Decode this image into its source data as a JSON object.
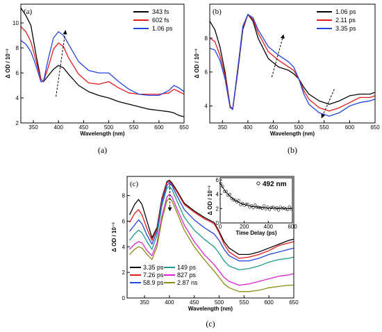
{
  "chart_data": [
    {
      "id": "a",
      "type": "line",
      "panel_label": "(a)",
      "caption": "(a)",
      "xlabel": "Wavelength (nm)",
      "ylabel": "Δ OD / 10⁻³",
      "xlim": [
        325,
        650
      ],
      "ylim": [
        2,
        11.5
      ],
      "xticks": [
        350,
        400,
        450,
        500,
        550,
        600,
        650
      ],
      "yticks": [
        2,
        4,
        6,
        8,
        10
      ],
      "legend_position": "top-right",
      "series": [
        {
          "name": "343 fs",
          "color": "#000000",
          "x": [
            325,
            335,
            345,
            355,
            365,
            370,
            380,
            390,
            400,
            410,
            420,
            440,
            460,
            480,
            500,
            520,
            540,
            560,
            580,
            600,
            620,
            630,
            640,
            650
          ],
          "y": [
            11.2,
            10.6,
            9.8,
            7.5,
            5.5,
            5.3,
            5.8,
            6.3,
            6.6,
            6.4,
            5.9,
            5.0,
            4.5,
            4.2,
            4.0,
            3.7,
            3.5,
            3.3,
            3.1,
            3.0,
            2.9,
            2.8,
            2.6,
            2.5
          ]
        },
        {
          "name": "602 fs",
          "color": "#e41a1c",
          "x": [
            325,
            335,
            345,
            355,
            365,
            370,
            380,
            390,
            400,
            410,
            420,
            440,
            460,
            480,
            500,
            520,
            540,
            560,
            580,
            600,
            620,
            630,
            640,
            650
          ],
          "y": [
            9.7,
            9.3,
            8.5,
            7.0,
            5.5,
            5.3,
            6.5,
            7.9,
            8.4,
            8.1,
            7.2,
            5.9,
            5.2,
            5.1,
            5.3,
            4.8,
            4.4,
            4.3,
            4.3,
            4.3,
            4.4,
            4.7,
            4.5,
            4.3
          ]
        },
        {
          "name": "1.06 ps",
          "color": "#2244dd",
          "x": [
            325,
            335,
            345,
            355,
            365,
            370,
            380,
            390,
            400,
            410,
            420,
            440,
            460,
            480,
            500,
            520,
            540,
            560,
            580,
            600,
            620,
            630,
            640,
            650
          ],
          "y": [
            8.6,
            8.3,
            7.7,
            6.6,
            5.3,
            5.3,
            7.2,
            8.8,
            9.3,
            9.0,
            8.3,
            6.9,
            6.2,
            6.0,
            6.0,
            5.3,
            4.7,
            4.3,
            4.2,
            4.2,
            4.6,
            5.0,
            4.8,
            4.5
          ]
        }
      ]
    },
    {
      "id": "b",
      "type": "line",
      "panel_label": "(b)",
      "caption": "(b)",
      "xlabel": "Wavelength (nm)",
      "ylabel": "Δ OD / 10⁻³",
      "xlim": [
        325,
        650
      ],
      "ylim": [
        3,
        10
      ],
      "xticks": [
        350,
        400,
        450,
        500,
        550,
        600,
        650
      ],
      "yticks": [
        4,
        6,
        8
      ],
      "legend_position": "top-right",
      "series": [
        {
          "name": "1.06 ps",
          "color": "#000000",
          "x": [
            325,
            335,
            345,
            355,
            365,
            370,
            380,
            390,
            400,
            410,
            420,
            440,
            460,
            480,
            490,
            500,
            510,
            520,
            540,
            560,
            580,
            600,
            620,
            640,
            650
          ],
          "y": [
            9.0,
            8.5,
            7.5,
            6.0,
            4.0,
            3.8,
            6.0,
            8.5,
            9.4,
            9.0,
            8.0,
            6.8,
            6.3,
            6.1,
            5.9,
            5.6,
            5.1,
            4.7,
            4.3,
            4.1,
            4.3,
            4.6,
            4.7,
            4.7,
            4.8
          ]
        },
        {
          "name": "2.11 ps",
          "color": "#e41a1c",
          "x": [
            325,
            335,
            345,
            355,
            365,
            370,
            380,
            390,
            400,
            410,
            420,
            440,
            460,
            480,
            490,
            500,
            510,
            520,
            540,
            560,
            580,
            600,
            620,
            640,
            650
          ],
          "y": [
            8.0,
            7.8,
            7.0,
            5.8,
            4.0,
            3.8,
            6.1,
            8.6,
            9.4,
            9.1,
            8.3,
            7.2,
            6.7,
            6.3,
            6.1,
            5.6,
            4.9,
            4.4,
            3.9,
            3.7,
            3.9,
            4.2,
            4.5,
            4.5,
            4.6
          ]
        },
        {
          "name": "3.35 ps",
          "color": "#2244dd",
          "x": [
            325,
            335,
            345,
            355,
            365,
            370,
            380,
            390,
            400,
            410,
            420,
            440,
            460,
            480,
            490,
            500,
            510,
            520,
            540,
            560,
            580,
            600,
            620,
            640,
            650
          ],
          "y": [
            7.4,
            7.3,
            6.7,
            5.6,
            3.9,
            3.8,
            6.2,
            8.7,
            9.4,
            9.2,
            8.5,
            7.5,
            7.0,
            6.6,
            6.3,
            5.6,
            4.7,
            4.1,
            3.6,
            3.4,
            3.6,
            4.0,
            4.2,
            4.3,
            4.4
          ]
        }
      ]
    },
    {
      "id": "c",
      "type": "line",
      "panel_label": "(c)",
      "caption": "(c)",
      "xlabel": "Wavelength (nm)",
      "ylabel": "Δ OD / 10⁻³",
      "xlim": [
        315,
        650
      ],
      "ylim": [
        0,
        9.5
      ],
      "xticks": [
        350,
        400,
        450,
        500,
        550,
        600,
        650
      ],
      "yticks": [
        0,
        2,
        4,
        6,
        8
      ],
      "legend_position": "bottom-left",
      "series": [
        {
          "name": "3.35 ps",
          "color": "#000000",
          "x": [
            320,
            330,
            338,
            345,
            355,
            365,
            375,
            385,
            395,
            400,
            405,
            415,
            430,
            450,
            470,
            490,
            500,
            510,
            520,
            540,
            560,
            580,
            600,
            620,
            640,
            650
          ],
          "y": [
            6.5,
            7.3,
            7.7,
            7.3,
            6.0,
            4.7,
            5.5,
            7.8,
            9.1,
            9.2,
            9.0,
            8.4,
            7.4,
            6.8,
            6.3,
            5.9,
            5.2,
            4.4,
            3.9,
            3.4,
            3.4,
            3.6,
            3.9,
            4.2,
            4.5,
            4.6
          ]
        },
        {
          "name": "7.26 ps",
          "color": "#e41a1c",
          "x": [
            320,
            330,
            338,
            345,
            355,
            365,
            375,
            385,
            395,
            400,
            405,
            415,
            430,
            450,
            470,
            490,
            500,
            510,
            520,
            540,
            560,
            580,
            600,
            620,
            640,
            650
          ],
          "y": [
            5.9,
            6.6,
            6.9,
            6.5,
            5.4,
            4.5,
            5.4,
            7.7,
            9.0,
            9.1,
            8.9,
            8.3,
            7.3,
            6.7,
            6.2,
            5.8,
            5.1,
            4.2,
            3.6,
            3.1,
            3.2,
            3.4,
            3.7,
            4.1,
            4.3,
            4.4
          ]
        },
        {
          "name": "58.9 ps",
          "color": "#2244dd",
          "x": [
            320,
            330,
            338,
            345,
            355,
            365,
            375,
            385,
            395,
            400,
            405,
            415,
            430,
            450,
            470,
            490,
            500,
            510,
            520,
            540,
            560,
            580,
            600,
            620,
            640,
            650
          ],
          "y": [
            5.2,
            5.7,
            6.1,
            5.8,
            4.9,
            4.2,
            5.2,
            7.5,
            8.8,
            9.0,
            8.8,
            8.0,
            6.9,
            6.1,
            5.5,
            5.0,
            4.5,
            3.8,
            3.3,
            2.9,
            2.9,
            3.1,
            3.4,
            3.6,
            3.8,
            3.9
          ]
        },
        {
          "name": "149 ps",
          "color": "#1a9a8a",
          "x": [
            320,
            330,
            338,
            345,
            355,
            365,
            375,
            385,
            395,
            400,
            405,
            415,
            430,
            450,
            470,
            490,
            500,
            510,
            520,
            540,
            560,
            580,
            600,
            620,
            640,
            650
          ],
          "y": [
            4.5,
            5.0,
            5.3,
            5.1,
            4.4,
            3.8,
            4.9,
            7.2,
            8.6,
            8.7,
            8.5,
            7.6,
            6.3,
            5.3,
            4.6,
            4.0,
            3.5,
            2.9,
            2.5,
            2.2,
            2.3,
            2.5,
            2.8,
            3.0,
            3.1,
            3.2
          ]
        },
        {
          "name": "827 ps",
          "color": "#dd22cc",
          "x": [
            320,
            330,
            338,
            345,
            355,
            365,
            375,
            385,
            395,
            400,
            405,
            415,
            430,
            450,
            470,
            490,
            500,
            510,
            520,
            540,
            560,
            580,
            600,
            620,
            640,
            650
          ],
          "y": [
            3.8,
            4.2,
            4.4,
            4.3,
            3.7,
            3.3,
            4.3,
            6.4,
            7.9,
            8.1,
            7.9,
            7.0,
            5.7,
            4.4,
            3.4,
            2.6,
            2.1,
            1.6,
            1.3,
            1.0,
            1.1,
            1.3,
            1.5,
            1.7,
            1.8,
            1.9
          ]
        },
        {
          "name": "2.87 ns",
          "color": "#8a8a10",
          "x": [
            320,
            330,
            338,
            345,
            355,
            365,
            375,
            385,
            395,
            400,
            405,
            415,
            430,
            450,
            470,
            490,
            500,
            510,
            520,
            540,
            560,
            580,
            600,
            620,
            640,
            650
          ],
          "y": [
            3.4,
            3.8,
            4.0,
            3.9,
            3.4,
            3.0,
            4.0,
            6.1,
            7.6,
            7.8,
            7.6,
            6.7,
            5.3,
            4.0,
            3.0,
            2.1,
            1.6,
            1.1,
            0.8,
            0.5,
            0.5,
            0.6,
            0.8,
            0.9,
            1.0,
            1.0
          ]
        }
      ]
    },
    {
      "id": "c-inset",
      "type": "scatter",
      "annotation": "492 nm",
      "xlabel": "Time Delay (ps)",
      "ylabel": "Δ OD / 10⁻³",
      "xlim": [
        0,
        600
      ],
      "ylim": [
        0,
        6.3
      ],
      "xticks": [
        0,
        200,
        400,
        600
      ],
      "yticks": [
        0,
        2,
        4,
        6
      ],
      "fit": {
        "amplitude": 3.6,
        "tau": 110,
        "offset": 2.0,
        "color": "#000000"
      },
      "points": {
        "color": "#000000",
        "x_start": 5,
        "x_end": 590,
        "step": 15
      }
    }
  ]
}
